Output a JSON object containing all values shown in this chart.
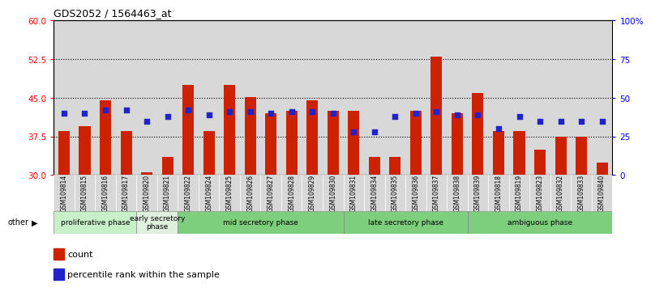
{
  "title": "GDS2052 / 1564463_at",
  "samples": [
    "GSM109814",
    "GSM109815",
    "GSM109816",
    "GSM109817",
    "GSM109820",
    "GSM109821",
    "GSM109822",
    "GSM109824",
    "GSM109825",
    "GSM109826",
    "GSM109827",
    "GSM109828",
    "GSM109829",
    "GSM109830",
    "GSM109831",
    "GSM109834",
    "GSM109835",
    "GSM109836",
    "GSM109837",
    "GSM109838",
    "GSM109839",
    "GSM109818",
    "GSM109819",
    "GSM109823",
    "GSM109832",
    "GSM109833",
    "GSM109840"
  ],
  "counts": [
    38.5,
    39.5,
    44.5,
    38.5,
    30.5,
    33.5,
    47.5,
    38.5,
    47.5,
    45.2,
    42.0,
    42.5,
    44.5,
    42.5,
    42.5,
    33.5,
    33.5,
    42.5,
    53.0,
    42.0,
    46.0,
    38.5,
    38.5,
    35.0,
    37.5,
    37.5,
    32.5
  ],
  "percentile_ranks": [
    40,
    40,
    42,
    42,
    35,
    38,
    42,
    39,
    41,
    41,
    40,
    41,
    41,
    40,
    28,
    28,
    38,
    40,
    41,
    39,
    39,
    30,
    38,
    35,
    35,
    35,
    35
  ],
  "phase_list": [
    {
      "name": "proliferative phase",
      "start": 0,
      "end": 4,
      "color": "#c8f0c8"
    },
    {
      "name": "early secretory\nphase",
      "start": 4,
      "end": 6,
      "color": "#dff0df"
    },
    {
      "name": "mid secretory phase",
      "start": 6,
      "end": 14,
      "color": "#7dce7d"
    },
    {
      "name": "late secretory phase",
      "start": 14,
      "end": 20,
      "color": "#7dce7d"
    },
    {
      "name": "ambiguous phase",
      "start": 20,
      "end": 27,
      "color": "#7dce7d"
    }
  ],
  "bar_color": "#cc2200",
  "dot_color": "#2222cc",
  "ylim_left": [
    30,
    60
  ],
  "ylim_right": [
    0,
    100
  ],
  "yticks_left": [
    30,
    37.5,
    45,
    52.5,
    60
  ],
  "yticks_right": [
    0,
    25,
    50,
    75,
    100
  ],
  "grid_values": [
    37.5,
    45.0,
    52.5
  ],
  "bar_width": 0.55,
  "dot_size": 18
}
